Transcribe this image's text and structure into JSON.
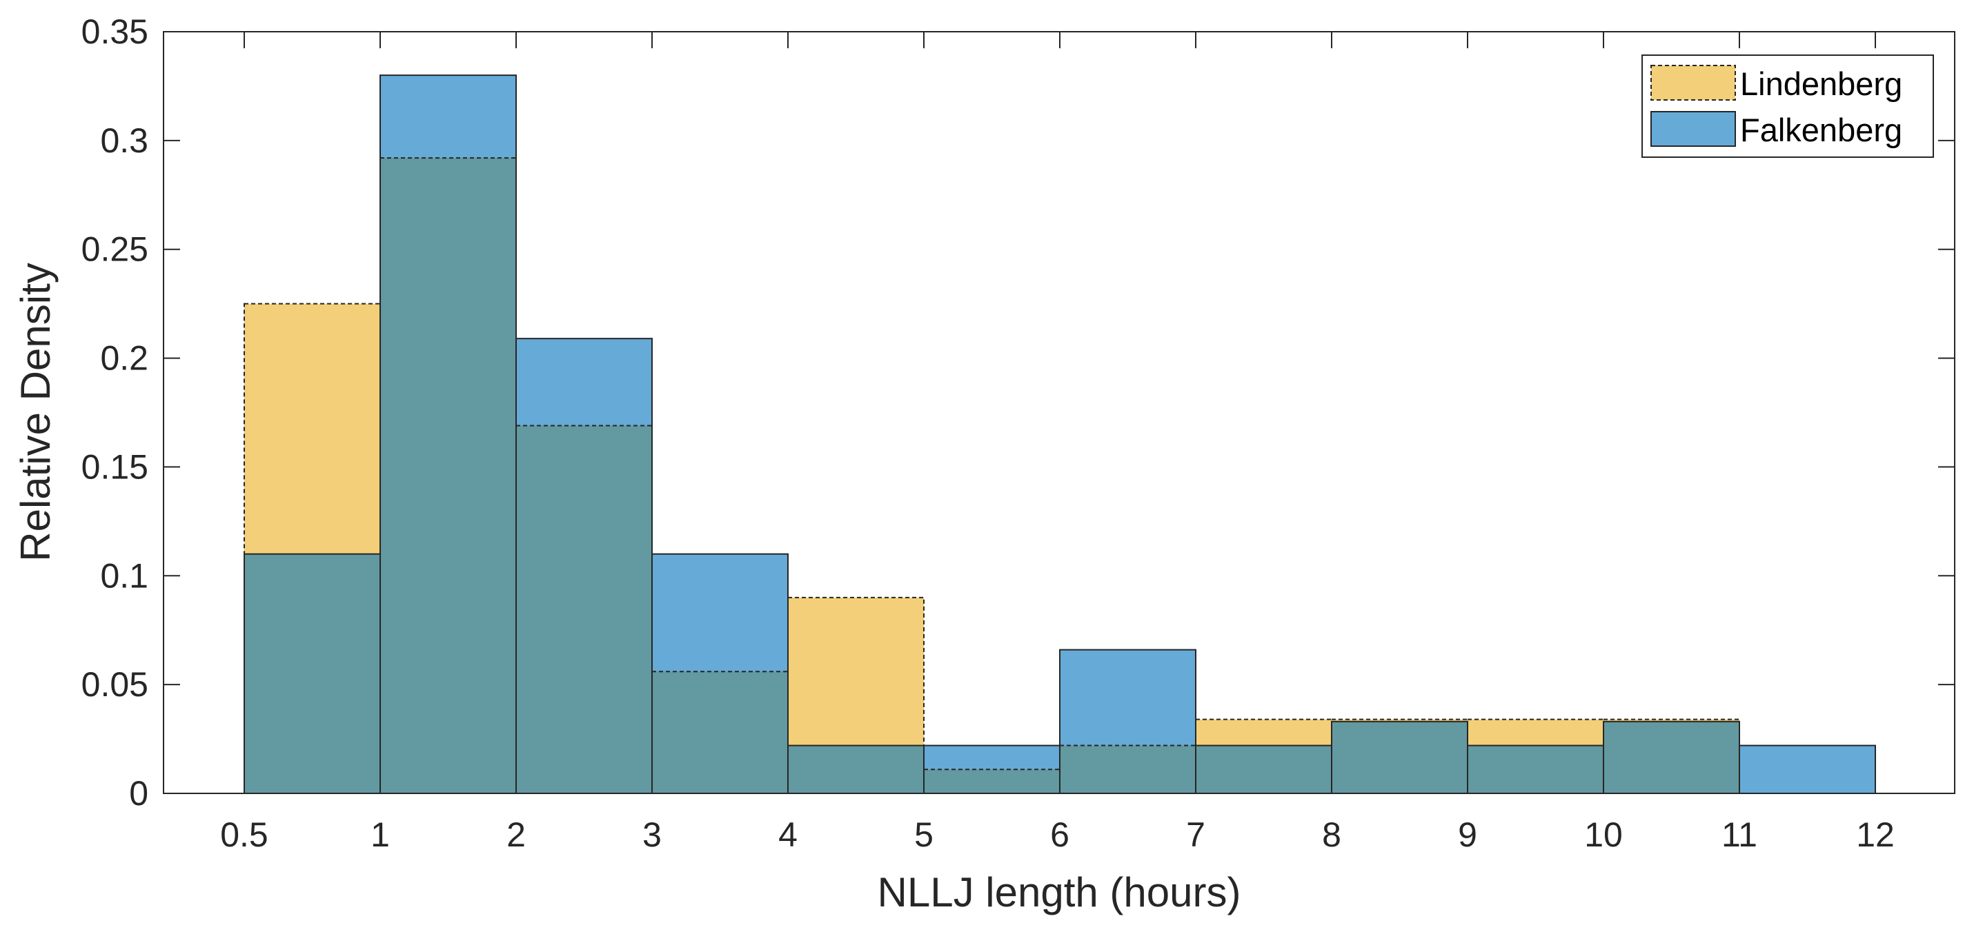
{
  "chart_data": {
    "type": "bar",
    "subtype": "overlaid-histogram",
    "title": "",
    "xlabel": "NLLJ length (hours)",
    "ylabel": "Relative Density",
    "categories": [
      "0.5-1",
      "1-2",
      "2-3",
      "3-4",
      "4-5",
      "5-6",
      "6-7",
      "7-8",
      "8-9",
      "9-10",
      "10-11",
      "11-12"
    ],
    "x_tick_labels": [
      "0.5",
      "1",
      "2",
      "3",
      "4",
      "5",
      "6",
      "7",
      "8",
      "9",
      "10",
      "11",
      "12"
    ],
    "y_ticks": [
      0,
      0.05,
      0.1,
      0.15,
      0.2,
      0.25,
      0.3,
      0.35
    ],
    "y_tick_labels": [
      "0",
      "0.05",
      "0.1",
      "0.15",
      "0.2",
      "0.25",
      "0.3",
      "0.35"
    ],
    "ylim": [
      0,
      0.35
    ],
    "grid": false,
    "legend_position": "top-right",
    "series": [
      {
        "name": "Lindenberg",
        "color": "#f2cf78",
        "edge_style": "dashed",
        "values": [
          0.225,
          0.292,
          0.169,
          0.056,
          0.09,
          0.011,
          0.022,
          0.034,
          0.034,
          0.034,
          0.034,
          0
        ]
      },
      {
        "name": "Falkenberg",
        "color": "#66aad7",
        "edge_style": "solid",
        "values": [
          0.11,
          0.33,
          0.209,
          0.11,
          0.022,
          0.022,
          0.066,
          0.022,
          0.033,
          0.022,
          0.033,
          0.022
        ]
      }
    ],
    "overlap_color": "#6399a0"
  }
}
